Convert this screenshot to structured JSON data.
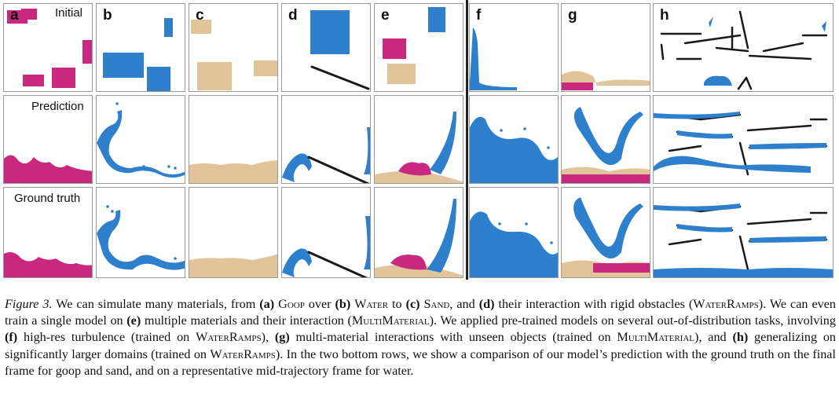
{
  "figure": {
    "panel_labels": [
      "a",
      "b",
      "c",
      "d",
      "e",
      "f",
      "g",
      "h"
    ],
    "row_labels": [
      "Initial",
      "Prediction",
      "Ground truth"
    ],
    "colors": {
      "goop": "#c8287e",
      "water": "#2e7fcc",
      "sand": "#e2c49a",
      "obstacle": "#1a1a1a",
      "panel_border": "#9a9a9a"
    },
    "icons": [
      "rigid-ramp-icon",
      "water-blob-icon",
      "goop-blob-icon",
      "sand-blob-icon"
    ]
  },
  "caption": {
    "lead": "Figure 3.",
    "t1": " We can simulate many materials, from ",
    "a": "(a)",
    "goop": "Goop",
    "t2": " over ",
    "b": "(b)",
    "water": "Water",
    "t3": " to ",
    "c": "(c)",
    "sand": "Sand",
    "t4": ", and ",
    "d": "(d)",
    "t5": " their interaction with rigid obstacles (",
    "waterramps": "WaterRamps",
    "t6": "). We can even train a single model on ",
    "e": "(e)",
    "t7": " multiple materials and their interaction (",
    "multimaterial": "MultiMaterial",
    "t8": "). We applied pre-trained models on several out-of-distribution tasks, involving ",
    "f": "(f)",
    "t9": " high-res turbulence (trained on ",
    "waterramps2": "WaterRamps",
    "t10": "), ",
    "g": "(g)",
    "t11": " multi-material interactions with unseen objects (trained on ",
    "multimaterial2": "MultiMaterial",
    "t12": "), and ",
    "h": "(h)",
    "t13": " generalizing on significantly larger domains (trained on ",
    "waterramps3": "WaterRamps",
    "t14": "). In the two bottom rows, we show a comparison of our model’s prediction with the ground truth on the final frame for goop and sand, and on a representative mid-trajectory frame for water."
  }
}
